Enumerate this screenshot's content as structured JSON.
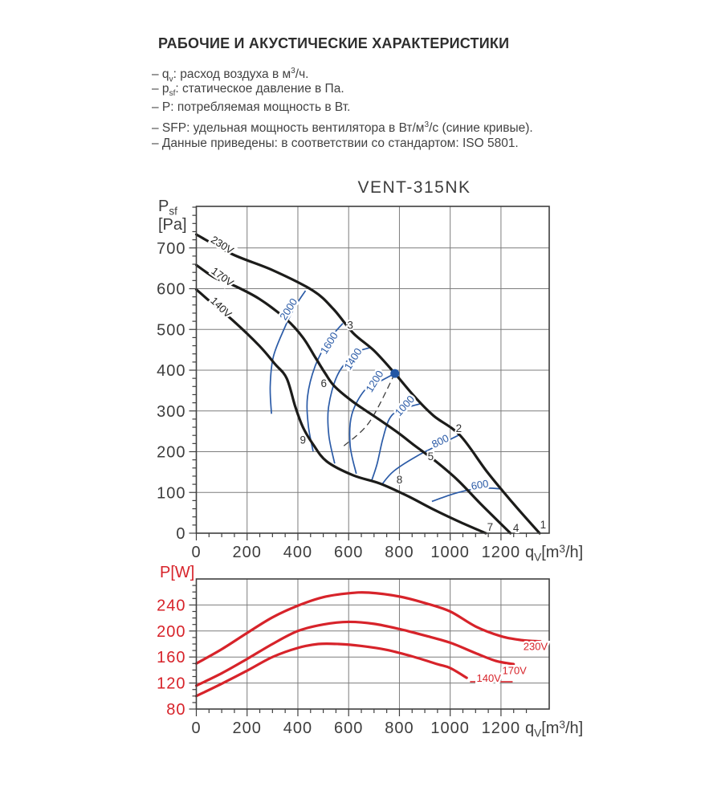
{
  "header": {
    "title": "РАБОЧИЕ И АКУСТИЧЕСКИЕ ХАРАКТЕРИСТИКИ",
    "bullets": [
      [
        {
          "t": "– q"
        },
        {
          "t": "v",
          "sub": true
        },
        {
          "t": ": расход воздуха в м"
        },
        {
          "t": "3",
          "sup": true
        },
        {
          "t": "/ч."
        }
      ],
      [
        {
          "t": "– p"
        },
        {
          "t": "sf",
          "sub": true
        },
        {
          "t": ": статическое давление в Па."
        }
      ],
      [
        {
          "t": "– P: потребляемая мощность в Вт."
        }
      ],
      [
        {
          "t": "– SFP: удельная мощность вентилятора в Вт/м"
        },
        {
          "t": "3",
          "sup": true
        },
        {
          "t": "/с (синие кривые)."
        }
      ],
      [
        {
          "t": "– Данные приведены: в соответствии со стандартом: ISO 5801."
        }
      ]
    ]
  },
  "colors": {
    "curve_black": "#1c1c1a",
    "blue": "#2b5ba7",
    "dot_blue": "#2256a4",
    "red": "#d7232a",
    "grid": "#7d7d7d",
    "border": "#3f3f3f",
    "text": "#3d3d3d"
  },
  "chart_data": [
    {
      "type": "line",
      "title": "VENT-315NK",
      "xlabel": [
        {
          "t": "q"
        },
        {
          "t": "V",
          "sub": true
        },
        {
          "t": "[m"
        },
        {
          "t": "3",
          "sup": true
        },
        {
          "t": "/h]"
        }
      ],
      "ylabel_lines": [
        [
          {
            "t": "P"
          },
          {
            "t": "sf",
            "sub": true
          }
        ],
        [
          {
            "t": "[Pa]"
          }
        ]
      ],
      "xlim": [
        0,
        1390
      ],
      "ylim": [
        0,
        802
      ],
      "x_ticks": [
        0,
        200,
        400,
        600,
        800,
        1000,
        1200
      ],
      "y_ticks": [
        0,
        100,
        200,
        300,
        400,
        500,
        600,
        700
      ],
      "x_minor_step": 50,
      "y_minor_step": 20,
      "series": [
        {
          "name": "230V",
          "points": [
            [
              0,
              733
            ],
            [
              144,
              684
            ],
            [
              302,
              645
            ],
            [
              460,
              595
            ],
            [
              540,
              550
            ],
            [
              618,
              491
            ],
            [
              700,
              448
            ],
            [
              782,
              392
            ],
            [
              860,
              335
            ],
            [
              935,
              288
            ],
            [
              1039,
              240
            ],
            [
              1146,
              150
            ],
            [
              1251,
              71
            ],
            [
              1352,
              0
            ]
          ],
          "label_at": {
            "x": 95,
            "y": 700,
            "angle": 32
          }
        },
        {
          "name": "170V",
          "points": [
            [
              0,
              658
            ],
            [
              70,
              628
            ],
            [
              144,
              609
            ],
            [
              248,
              575
            ],
            [
              356,
              524
            ],
            [
              420,
              480
            ],
            [
              470,
              430
            ],
            [
              508,
              392
            ],
            [
              545,
              360
            ],
            [
              618,
              322
            ],
            [
              713,
              282
            ],
            [
              798,
              245
            ],
            [
              860,
              215
            ],
            [
              940,
              178
            ],
            [
              1030,
              130
            ],
            [
              1120,
              72
            ],
            [
              1237,
              0
            ]
          ],
          "label_at": {
            "x": 95,
            "y": 622,
            "angle": 36
          }
        },
        {
          "name": "140V",
          "points": [
            [
              0,
              598
            ],
            [
              70,
              560
            ],
            [
              144,
              522
            ],
            [
              248,
              460
            ],
            [
              310,
              415
            ],
            [
              356,
              380
            ],
            [
              390,
              310
            ],
            [
              420,
              260
            ],
            [
              460,
              218
            ],
            [
              514,
              176
            ],
            [
              618,
              142
            ],
            [
              723,
              122
            ],
            [
              830,
              92
            ],
            [
              935,
              58
            ],
            [
              1040,
              27
            ],
            [
              1140,
              0
            ]
          ],
          "label_at": {
            "x": 88,
            "y": 548,
            "angle": 44
          }
        }
      ],
      "sfp_curves": [
        {
          "label": "2000",
          "points": [
            [
              296,
              293
            ],
            [
              291,
              360
            ],
            [
              303,
              432
            ],
            [
              345,
              500
            ],
            [
              388,
              555
            ],
            [
              430,
              595
            ]
          ],
          "label_at": {
            "x": 375,
            "y": 545,
            "angle": -58
          }
        },
        {
          "label": "1600",
          "points": [
            [
              460,
              201
            ],
            [
              441,
              265
            ],
            [
              438,
              335
            ],
            [
              468,
              410
            ],
            [
              520,
              472
            ],
            [
              577,
              515
            ]
          ],
          "label_at": {
            "x": 535,
            "y": 462,
            "angle": -58
          }
        },
        {
          "label": "1400",
          "points": [
            [
              545,
              171
            ],
            [
              522,
              240
            ],
            [
              521,
              310
            ],
            [
              556,
              388
            ],
            [
              622,
              440
            ],
            [
              688,
              456
            ]
          ],
          "label_at": {
            "x": 629,
            "y": 423,
            "angle": -58
          }
        },
        {
          "label": "1200",
          "points": [
            [
              630,
              146
            ],
            [
              606,
              215
            ],
            [
              612,
              290
            ],
            [
              662,
              350
            ],
            [
              722,
              372
            ],
            [
              782,
              392
            ]
          ],
          "label_at": {
            "x": 714,
            "y": 368,
            "angle": -58
          }
        },
        {
          "label": "1000",
          "points": [
            [
              690,
              128
            ],
            [
              712,
              170
            ],
            [
              734,
              230
            ],
            [
              760,
              280
            ],
            [
              800,
              302
            ],
            [
              885,
              318
            ]
          ],
          "label_at": {
            "x": 831,
            "y": 307,
            "angle": -48
          }
        },
        {
          "label": "800",
          "points": [
            [
              729,
              118
            ],
            [
              777,
              152
            ],
            [
              871,
              190
            ],
            [
              967,
              220
            ],
            [
              1038,
              242
            ]
          ],
          "label_at": {
            "x": 967,
            "y": 218,
            "angle": -26
          }
        },
        {
          "label": "600",
          "points": [
            [
              928,
              78
            ],
            [
              1000,
              94
            ],
            [
              1065,
              105
            ],
            [
              1124,
              111
            ],
            [
              1196,
              109
            ]
          ],
          "label_at": {
            "x": 1119,
            "y": 110,
            "angle": -10
          }
        }
      ],
      "point_labels": [
        {
          "text": "1",
          "x": 1366,
          "y": 22
        },
        {
          "text": "2",
          "x": 1034,
          "y": 258
        },
        {
          "text": "3",
          "x": 606,
          "y": 511
        },
        {
          "text": "4",
          "x": 1259,
          "y": 14
        },
        {
          "text": "5",
          "x": 923,
          "y": 189
        },
        {
          "text": "6",
          "x": 502,
          "y": 368
        },
        {
          "text": "7",
          "x": 1157,
          "y": 16
        },
        {
          "text": "8",
          "x": 800,
          "y": 132
        },
        {
          "text": "9",
          "x": 420,
          "y": 230
        }
      ],
      "operating_point": {
        "x": 782,
        "y": 392
      },
      "dashed_line": [
        [
          782,
          392
        ],
        [
          682,
          273
        ],
        [
          581,
          214
        ]
      ]
    },
    {
      "type": "line",
      "title": "",
      "xlabel": [
        {
          "t": "q"
        },
        {
          "t": "V",
          "sub": true
        },
        {
          "t": "[m"
        },
        {
          "t": "3",
          "sup": true
        },
        {
          "t": "/h]"
        }
      ],
      "ylabel_lines": [
        [
          {
            "t": "P[W]"
          }
        ]
      ],
      "xlim": [
        0,
        1390
      ],
      "ylim": [
        80,
        280
      ],
      "x_ticks": [
        0,
        200,
        400,
        600,
        800,
        1000,
        1200
      ],
      "y_ticks": [
        80,
        120,
        160,
        200,
        240
      ],
      "x_minor_step": 50,
      "y_minor_step": 10,
      "series": [
        {
          "name": "230V",
          "points": [
            [
              0,
              150
            ],
            [
              100,
              172
            ],
            [
              200,
              197
            ],
            [
              300,
              221
            ],
            [
              400,
              239
            ],
            [
              500,
              252
            ],
            [
              600,
              258
            ],
            [
              680,
              259
            ],
            [
              800,
              253
            ],
            [
              900,
              243
            ],
            [
              1000,
              230
            ],
            [
              1100,
              207
            ],
            [
              1200,
              192
            ],
            [
              1280,
              186
            ],
            [
              1355,
              184
            ]
          ],
          "label_at": {
            "x": 1336,
            "y": 171,
            "angle": 0
          }
        },
        {
          "name": "170V",
          "points": [
            [
              0,
              116
            ],
            [
              100,
              135
            ],
            [
              200,
              157
            ],
            [
              300,
              180
            ],
            [
              400,
              200
            ],
            [
              500,
              210
            ],
            [
              600,
              214
            ],
            [
              700,
              211
            ],
            [
              800,
              203
            ],
            [
              900,
              193
            ],
            [
              1000,
              182
            ],
            [
              1100,
              166
            ],
            [
              1180,
              154
            ],
            [
              1250,
              149
            ]
          ],
          "label_at": {
            "x": 1253,
            "y": 134,
            "angle": 0
          }
        },
        {
          "name": "140V",
          "points": [
            [
              0,
              100
            ],
            [
              100,
              119
            ],
            [
              200,
              139
            ],
            [
              300,
              160
            ],
            [
              400,
              174
            ],
            [
              480,
              180
            ],
            [
              560,
              180
            ],
            [
              650,
              177
            ],
            [
              750,
              171
            ],
            [
              850,
              161
            ],
            [
              950,
              149
            ],
            [
              1000,
              143
            ],
            [
              1065,
              128
            ]
          ],
          "label_at": {
            "x": 1152,
            "y": 122,
            "angle": 0
          }
        }
      ],
      "leader_lines": [
        [
          [
            1078,
            122
          ],
          [
            1108,
            122
          ]
        ],
        [
          [
            1198,
            122
          ],
          [
            1246,
            122
          ]
        ]
      ]
    }
  ]
}
